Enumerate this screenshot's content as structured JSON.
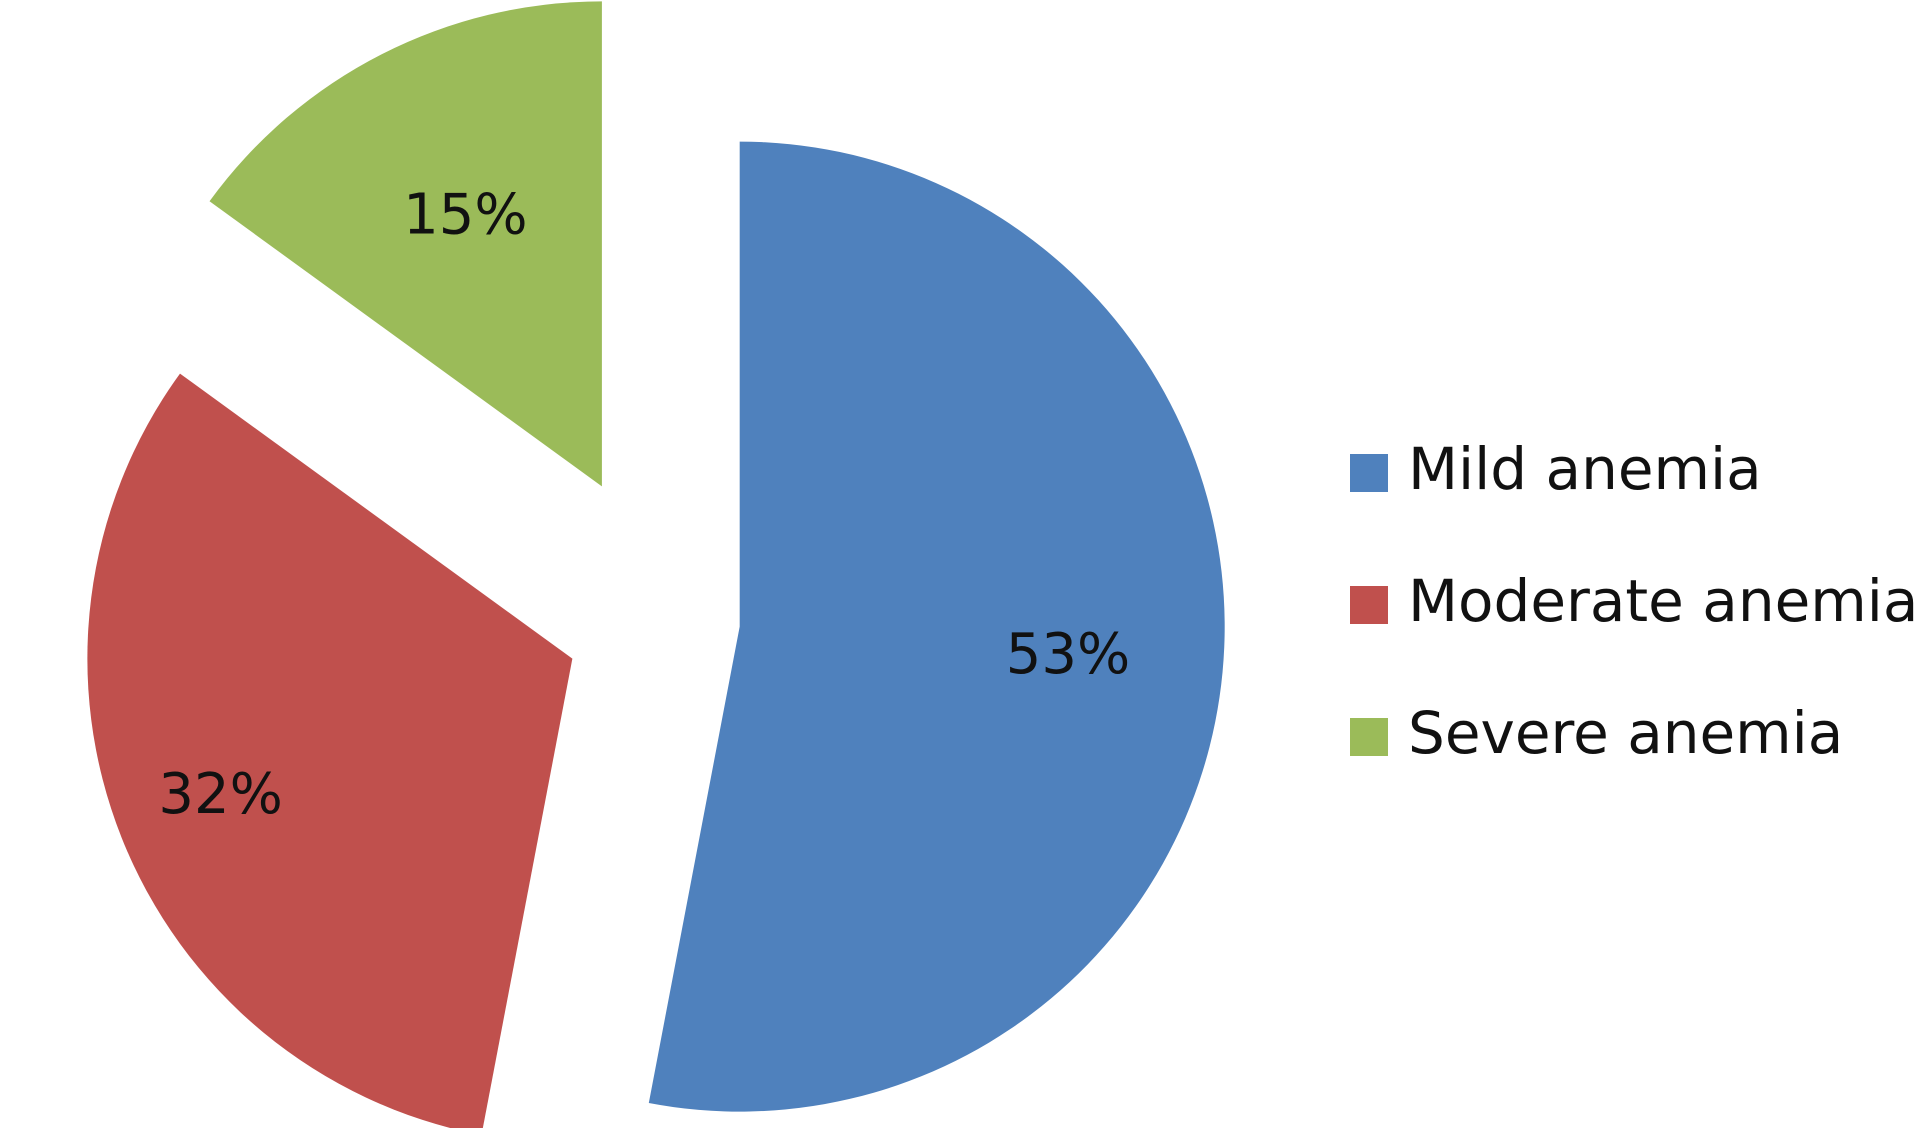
{
  "chart_data": {
    "type": "pie",
    "legend_position": "right",
    "exploded": true,
    "series": [
      {
        "name": "Mild anemia",
        "value": 53,
        "label": "53%",
        "color": "#4f81bd"
      },
      {
        "name": "Moderate anemia",
        "value": 32,
        "label": "32%",
        "color": "#c0504d"
      },
      {
        "name": "Severe anemia",
        "value": 15,
        "label": "15%",
        "color": "#9bbb59"
      }
    ]
  }
}
